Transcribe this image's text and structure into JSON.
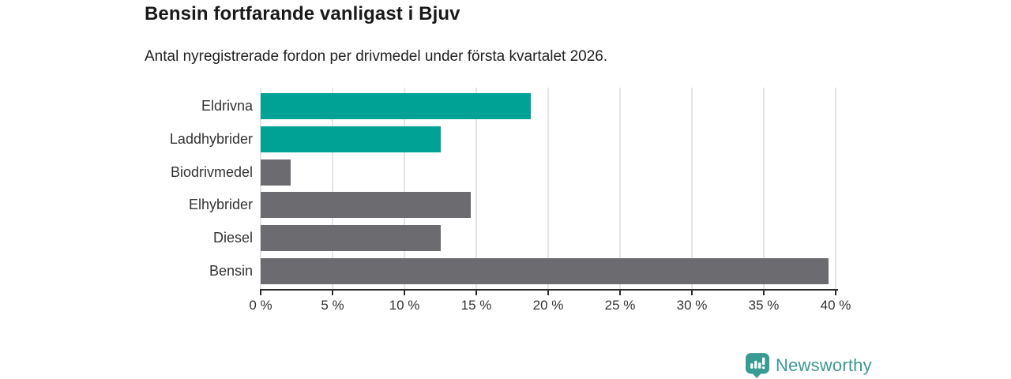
{
  "header": {
    "title": "Bensin fortfarande vanligast i Bjuv",
    "subtitle": "Antal nyregistrerade fordon per drivmedel under första kvartalet 2026."
  },
  "chart_data": {
    "type": "bar",
    "orientation": "horizontal",
    "title": "Bensin fortfarande vanligast i Bjuv",
    "subtitle": "Antal nyregistrerade fordon per drivmedel under första kvartalet 2026.",
    "categories": [
      "Eldrivna",
      "Laddhybrider",
      "Biodrivmedel",
      "Elhybrider",
      "Diesel",
      "Bensin"
    ],
    "values": [
      18.8,
      12.5,
      2.1,
      14.6,
      12.5,
      39.5
    ],
    "unit": "%",
    "xlim": [
      0,
      40
    ],
    "x_tick_step": 5,
    "x_tick_labels": [
      "0 %",
      "5 %",
      "10 %",
      "15 %",
      "20 %",
      "25 %",
      "30 %",
      "35 %",
      "40 %"
    ],
    "grid": true,
    "legend": false,
    "bar_colors": [
      "#00a296",
      "#00a296",
      "#6c6c70",
      "#6c6c70",
      "#6c6c70",
      "#6c6c70"
    ],
    "highlight_color": "#00a296",
    "base_color": "#6c6c70",
    "gridline_color": "#e4e4e4",
    "axis_color": "#2b2b2b"
  },
  "footer": {
    "brand": "Newsworthy",
    "brand_color": "#3a9a94",
    "logo_icon": "bar-chart-speech-bubble-icon"
  }
}
